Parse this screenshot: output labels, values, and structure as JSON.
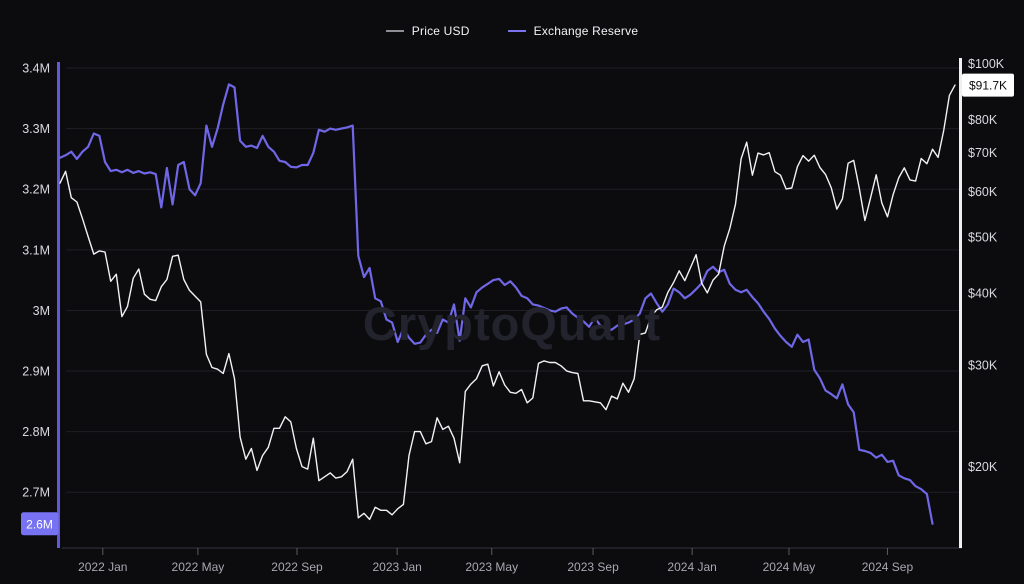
{
  "legend": {
    "items": [
      {
        "label": "Price USD",
        "swatch_color": "#8e8f96",
        "line_color": "#f1f2f4"
      },
      {
        "label": "Exchange Reserve",
        "swatch_color": "#7b74ee",
        "line_color": "#6f67e6"
      }
    ]
  },
  "watermark": "CryptoQuant",
  "badges": {
    "left": {
      "text": "2.6M",
      "bg": "#7672f2",
      "fg": "#ffffff"
    },
    "right": {
      "text": "$91.7K",
      "bg": "#ffffff",
      "fg": "#0b0b0d"
    }
  },
  "chart_data": {
    "type": "line",
    "title": "",
    "x_range_note": "weekly points, Nov 2021 - Nov 2024",
    "x_ticks": [
      {
        "label": "2022 Jan",
        "week": 7.6
      },
      {
        "label": "2022 May",
        "week": 24.5
      },
      {
        "label": "2022 Sep",
        "week": 42.1
      },
      {
        "label": "2023 Jan",
        "week": 59.9
      },
      {
        "label": "2023 May",
        "week": 76.7
      },
      {
        "label": "2023 Sep",
        "week": 94.7
      },
      {
        "label": "2024 Jan",
        "week": 112.3
      },
      {
        "label": "2024 May",
        "week": 129.5
      },
      {
        "label": "2024 Sep",
        "week": 147.0
      }
    ],
    "left_axis": {
      "unit": "M BTC",
      "scale": "linear",
      "ylim": [
        2.608,
        3.4215
      ],
      "ticks": [
        {
          "value": 3.4,
          "label": "3.4M"
        },
        {
          "value": 3.3,
          "label": "3.3M"
        },
        {
          "value": 3.2,
          "label": "3.2M"
        },
        {
          "value": 3.1,
          "label": "3.1M"
        },
        {
          "value": 3.0,
          "label": "3M"
        },
        {
          "value": 2.9,
          "label": "2.9M"
        },
        {
          "value": 2.8,
          "label": "2.8M"
        },
        {
          "value": 2.7,
          "label": "2.7M"
        }
      ]
    },
    "right_axis": {
      "unit": "USD",
      "scale": "log",
      "ylim": [
        14450,
        103400
      ],
      "ticks": [
        {
          "value": 100000,
          "label": "$100K"
        },
        {
          "value": 80000,
          "label": "$80K"
        },
        {
          "value": 70000,
          "label": "$70K"
        },
        {
          "value": 60000,
          "label": "$60K"
        },
        {
          "value": 50000,
          "label": "$50K"
        },
        {
          "value": 40000,
          "label": "$40K"
        },
        {
          "value": 30000,
          "label": "$30K"
        },
        {
          "value": 20000,
          "label": "$20K"
        }
      ]
    },
    "series": [
      {
        "name": "Price USD",
        "axis": "right",
        "color": "#f1f2f4",
        "width": 1.4,
        "last_value_label": "$91.7K",
        "values": [
          62000,
          65000,
          58500,
          57500,
          53800,
          50100,
          46700,
          47300,
          47100,
          41900,
          43100,
          36400,
          37900,
          42400,
          44000,
          39800,
          39000,
          38800,
          41000,
          42200,
          46300,
          46500,
          42200,
          40400,
          39500,
          38600,
          31300,
          29700,
          29500,
          29000,
          31400,
          28400,
          22500,
          20600,
          21500,
          19700,
          20900,
          21600,
          23300,
          23300,
          24400,
          23900,
          21500,
          20000,
          19800,
          22400,
          18900,
          19200,
          19500,
          19100,
          19200,
          19600,
          20600,
          16300,
          16600,
          16200,
          17000,
          16800,
          16800,
          16500,
          16900,
          17200,
          20900,
          23000,
          23000,
          21900,
          22100,
          24300,
          23200,
          23500,
          22400,
          20300,
          27000,
          27800,
          28400,
          29900,
          30100,
          27600,
          29200,
          27700,
          26900,
          26800,
          27200,
          25800,
          26300,
          30200,
          30500,
          30300,
          30300,
          29900,
          29300,
          29100,
          29000,
          26000,
          26000,
          25900,
          25800,
          25100,
          26500,
          26200,
          27900,
          26900,
          28400,
          33900,
          34100,
          36400,
          37400,
          37800,
          40100,
          41700,
          43700,
          42000,
          44200,
          46600,
          41600,
          40000,
          42100,
          43100,
          48200,
          51700,
          57000,
          68300,
          73000,
          64000,
          69900,
          69400,
          70000,
          64900,
          64000,
          60600,
          60800,
          66200,
          69200,
          67700,
          69300,
          66000,
          64200,
          60900,
          55900,
          58200,
          67100,
          67900,
          60700,
          53400,
          58500,
          64100,
          57300,
          54200,
          59200,
          63300,
          65900,
          62800,
          62500,
          68400,
          67000,
          71000,
          68700,
          76500,
          88000,
          91700
        ]
      },
      {
        "name": "Exchange Reserve",
        "axis": "left",
        "color": "#6f67e6",
        "width": 2.2,
        "last_value_label": "2.6M",
        "values": [
          3.252,
          3.256,
          3.262,
          3.25,
          3.262,
          3.27,
          3.292,
          3.288,
          3.245,
          3.23,
          3.232,
          3.228,
          3.232,
          3.227,
          3.23,
          3.226,
          3.228,
          3.225,
          3.17,
          3.235,
          3.175,
          3.24,
          3.245,
          3.2,
          3.19,
          3.21,
          3.305,
          3.27,
          3.3,
          3.34,
          3.373,
          3.368,
          3.28,
          3.27,
          3.272,
          3.268,
          3.288,
          3.27,
          3.262,
          3.247,
          3.245,
          3.237,
          3.236,
          3.24,
          3.24,
          3.26,
          3.298,
          3.295,
          3.3,
          3.298,
          3.3,
          3.302,
          3.305,
          3.09,
          3.055,
          3.07,
          3.02,
          3.015,
          2.985,
          2.98,
          2.948,
          2.97,
          2.955,
          2.945,
          2.947,
          2.96,
          2.968,
          2.963,
          2.985,
          2.98,
          3.01,
          2.95,
          3.02,
          3.005,
          3.03,
          3.038,
          3.044,
          3.05,
          3.052,
          3.042,
          3.048,
          3.038,
          3.024,
          3.02,
          3.01,
          3.008,
          3.004,
          3.0,
          2.998,
          3.003,
          3.005,
          2.995,
          2.988,
          2.982,
          2.973,
          2.988,
          2.975,
          2.97,
          2.968,
          2.975,
          2.977,
          2.98,
          2.985,
          2.995,
          3.02,
          3.028,
          3.012,
          2.998,
          3.01,
          3.036,
          3.03,
          3.02,
          3.026,
          3.035,
          3.045,
          3.065,
          3.072,
          3.063,
          3.067,
          3.044,
          3.034,
          3.03,
          3.034,
          3.022,
          3.012,
          2.998,
          2.986,
          2.97,
          2.958,
          2.948,
          2.94,
          2.96,
          2.948,
          2.952,
          2.902,
          2.888,
          2.868,
          2.862,
          2.855,
          2.878,
          2.845,
          2.832,
          2.77,
          2.768,
          2.765,
          2.757,
          2.762,
          2.75,
          2.752,
          2.728,
          2.723,
          2.72,
          2.71,
          2.705,
          2.697,
          2.648
        ]
      }
    ]
  },
  "colors": {
    "background": "#0c0c0f",
    "gridline": "#1e1f24",
    "baseline": "#35363c",
    "tick": "#5a5b62",
    "left_axis_line": "#6059d8",
    "right_axis_line": "#f0f0f2"
  }
}
